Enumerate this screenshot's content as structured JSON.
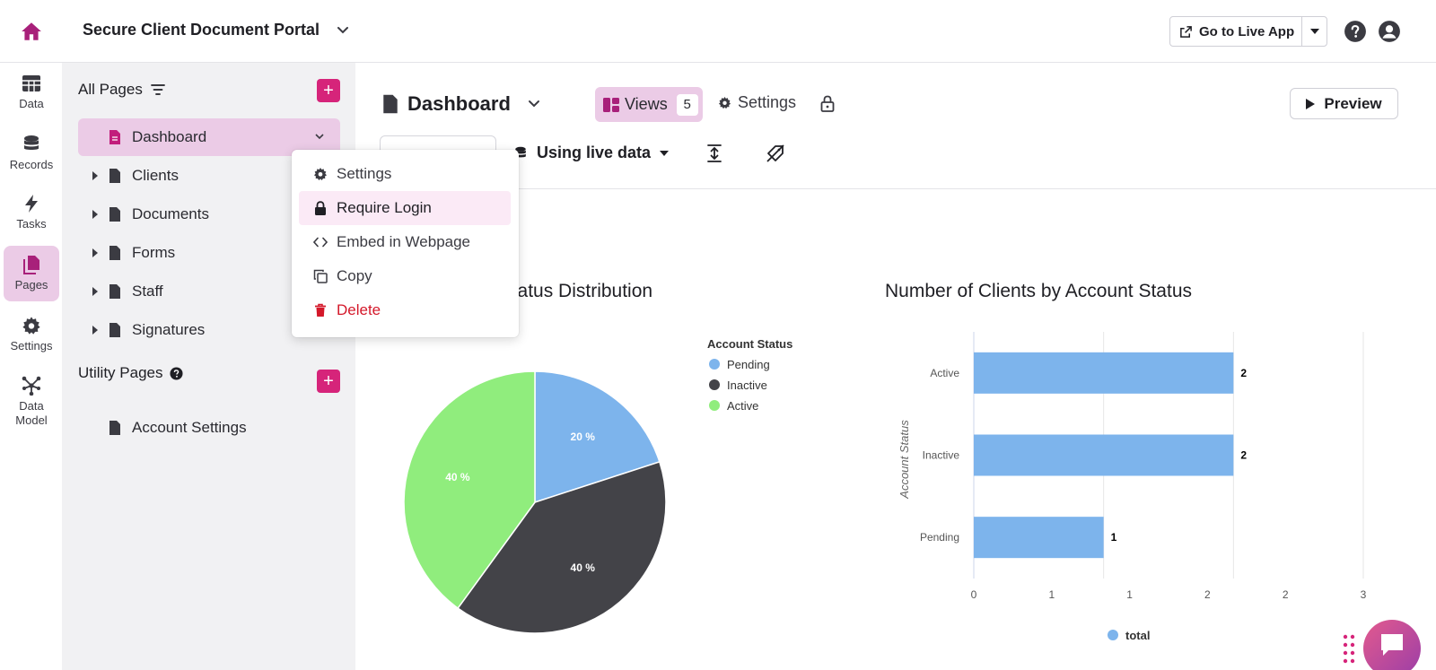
{
  "header": {
    "app_title": "Secure Client Document Portal",
    "live_app_label": "Go to Live App"
  },
  "rail": {
    "items": [
      {
        "label": "Data",
        "icon": "table-icon"
      },
      {
        "label": "Records",
        "icon": "database-icon"
      },
      {
        "label": "Tasks",
        "icon": "bolt-icon"
      },
      {
        "label": "Pages",
        "icon": "pages-icon"
      },
      {
        "label": "Settings",
        "icon": "gear-icon"
      },
      {
        "label": "Data\nModel",
        "icon": "network-icon"
      }
    ],
    "active": "Pages"
  },
  "pages_panel": {
    "all_pages_heading": "All Pages",
    "pages": [
      {
        "label": "Dashboard",
        "selected": true
      },
      {
        "label": "Clients"
      },
      {
        "label": "Documents"
      },
      {
        "label": "Forms"
      },
      {
        "label": "Staff"
      },
      {
        "label": "Signatures"
      }
    ],
    "utility_heading": "Utility Pages",
    "utility_pages": [
      {
        "label": "Account Settings"
      }
    ]
  },
  "context_menu": {
    "items": [
      {
        "label": "Settings"
      },
      {
        "label": "Require Login"
      },
      {
        "label": "Embed in Webpage"
      },
      {
        "label": "Copy"
      },
      {
        "label": "Delete"
      }
    ]
  },
  "main": {
    "page_title": "Dashboard",
    "views_label": "Views",
    "views_count": "5",
    "settings_label": "Settings",
    "preview_label": "Preview",
    "live_data_label": "Using live data"
  },
  "colors": {
    "accent": "#d6247a",
    "selected_bg": "#ebcbe6",
    "pending": "#7db4ec",
    "inactive": "#434348",
    "active": "#90ed7d"
  },
  "chart_data": [
    {
      "type": "pie",
      "title": "t Status Distribution",
      "legend_title": "Account Status",
      "categories": [
        "Pending",
        "Inactive",
        "Active"
      ],
      "values": [
        20,
        40,
        40
      ],
      "labels": [
        "20 %",
        "40 %",
        "40 %"
      ],
      "legend_position": "top-right"
    },
    {
      "type": "bar",
      "orientation": "horizontal",
      "title": "Number of Clients by Account Status",
      "ylabel": "Account Status",
      "categories": [
        "Active",
        "Inactive",
        "Pending"
      ],
      "values": [
        2,
        2,
        1
      ],
      "x_ticks": [
        "0",
        "1",
        "1",
        "2",
        "2",
        "3"
      ],
      "xlim": [
        0,
        3
      ],
      "legend": [
        "total"
      ],
      "legend_position": "bottom"
    }
  ]
}
